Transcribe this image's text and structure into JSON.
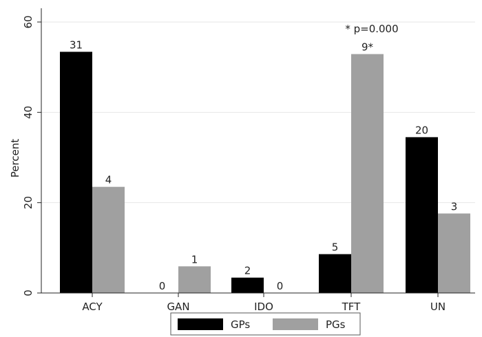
{
  "chart_data": {
    "type": "bar",
    "categories": [
      "ACY",
      "GAN",
      "IDO",
      "TFT",
      "UN"
    ],
    "series": [
      {
        "name": "GPs",
        "color": "#000000",
        "values": [
          53.4,
          0,
          3.4,
          8.6,
          34.5
        ],
        "labels": [
          "31",
          "0",
          "2",
          "5",
          "20"
        ]
      },
      {
        "name": "PGs",
        "color": "#a0a0a0",
        "values": [
          23.5,
          5.9,
          0,
          52.9,
          17.6
        ],
        "labels": [
          "4",
          "1",
          "0",
          "9*",
          "3"
        ]
      }
    ],
    "ylabel": "Percent",
    "ylim": [
      0,
      60
    ],
    "yticks": [
      0,
      20,
      40,
      60
    ],
    "annotation": "* p=0.000",
    "grid": true,
    "legend_position": "bottom"
  }
}
